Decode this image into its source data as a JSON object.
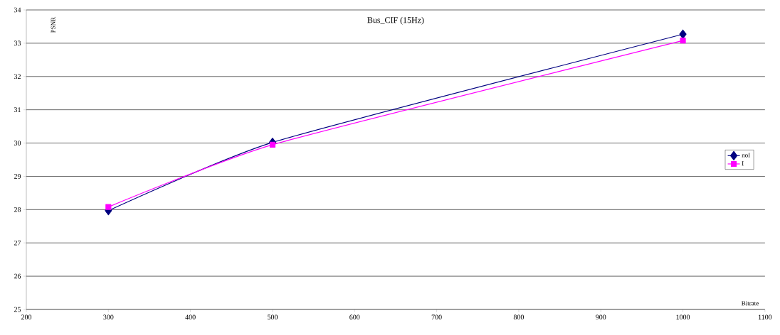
{
  "chart_data": {
    "type": "line",
    "title": "Bus_CIF (15Hz)",
    "xlabel": "Bitrate",
    "ylabel": "PSNR",
    "x": [
      300,
      500,
      1000
    ],
    "series": [
      {
        "name": "noI",
        "color": "#000080",
        "marker": "diamond",
        "values": [
          27.97,
          30.02,
          33.27
        ]
      },
      {
        "name": "I",
        "color": "#ff00ff",
        "marker": "square",
        "values": [
          28.08,
          29.95,
          33.08
        ]
      }
    ],
    "xlim": [
      200,
      1100
    ],
    "ylim": [
      25,
      34
    ],
    "xticks": [
      200,
      300,
      400,
      500,
      600,
      700,
      800,
      900,
      1000,
      1100
    ],
    "yticks": [
      25,
      26,
      27,
      28,
      29,
      30,
      31,
      32,
      33,
      34
    ],
    "grid": "y",
    "legend": "right",
    "line_style": "solid"
  }
}
